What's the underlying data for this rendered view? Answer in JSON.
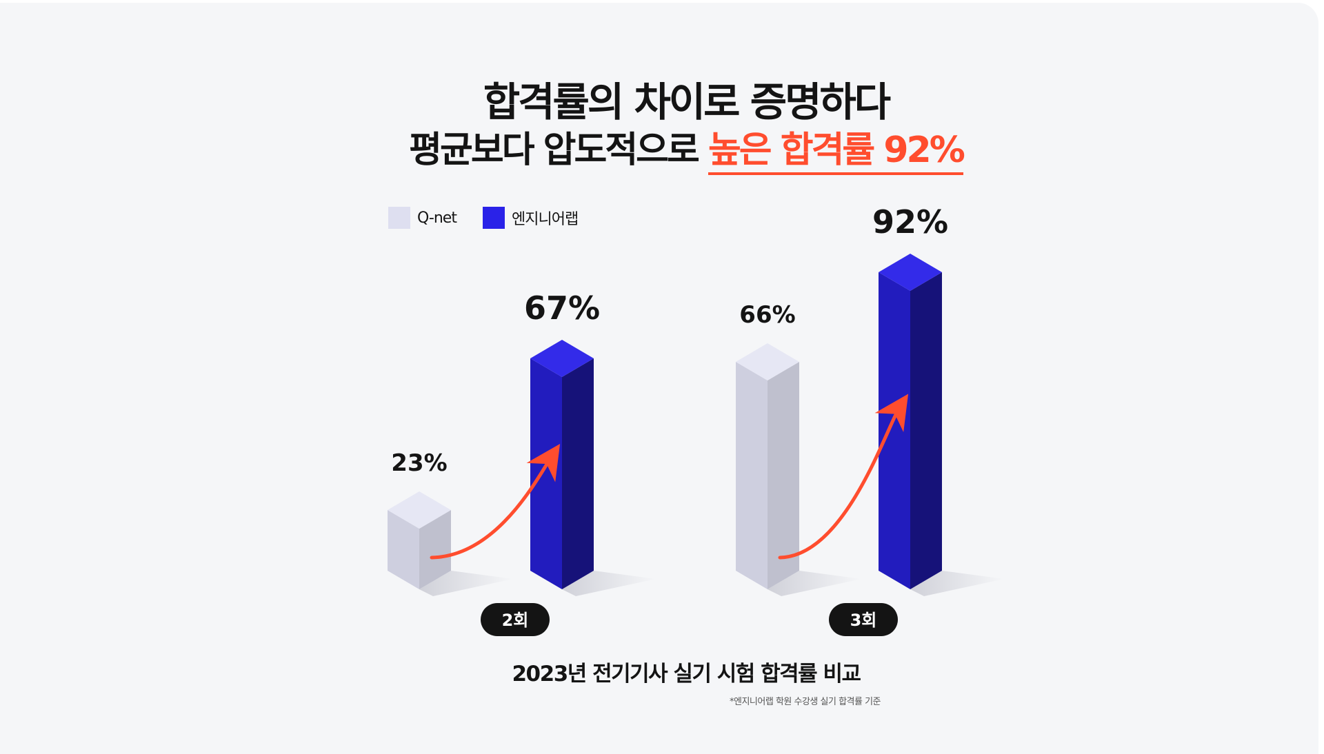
{
  "headline": "합격률의 차이로 증명하다",
  "subline_prefix": "평균보다 압도적으로 ",
  "subline_highlight": "높은 합격률 92%",
  "accent_color": "#ff4d2e",
  "caption": "2023년 전기기사 실기 시험 합격률 비교",
  "footnote": "*엔지니어랩 학원 수강생 실기 합격률 기준",
  "chart_data": {
    "type": "bar",
    "categories": [
      "2회",
      "3회"
    ],
    "series": [
      {
        "name": "Q-net",
        "values": [
          23,
          66
        ],
        "labels": [
          "23%",
          "66%"
        ],
        "color": "#dedff0"
      },
      {
        "name": "엔지니어랩",
        "values": [
          67,
          92
        ],
        "labels": [
          "67%",
          "92%"
        ],
        "color": "#2a22e8"
      }
    ],
    "ylim": [
      0,
      100
    ],
    "legend_position": "top-left",
    "grid": false
  }
}
